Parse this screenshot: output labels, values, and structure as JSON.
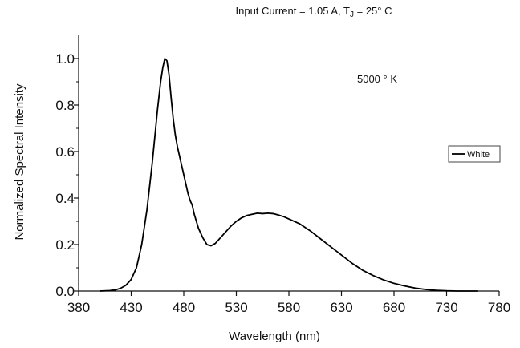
{
  "chart_data": {
    "type": "line",
    "title": "Input Current = 1.05 A, TJ = 25° C",
    "title_parts": {
      "prefix": "Input Current = 1.05 A, T",
      "subscript": "J",
      "suffix": " = 25° C"
    },
    "annotation": "5000 ° K",
    "xlabel": "Wavelength (nm)",
    "ylabel": "Normalized Spectral Intensity",
    "xlim": [
      380,
      780
    ],
    "ylim": [
      0,
      1.1
    ],
    "xticks": [
      "380",
      "430",
      "480",
      "530",
      "580",
      "630",
      "680",
      "730",
      "780"
    ],
    "yticks": [
      "0.0",
      "0.2",
      "0.4",
      "0.6",
      "0.8",
      "1.0"
    ],
    "legend": "right",
    "grid": false,
    "series": [
      {
        "name": "White",
        "color": "#000000",
        "x": [
          400,
          410,
          415,
          420,
          425,
          430,
          435,
          440,
          445,
          450,
          455,
          458,
          460,
          462,
          464,
          466,
          468,
          470,
          472,
          474,
          476,
          478,
          480,
          482,
          484,
          486,
          488,
          490,
          494,
          498,
          502,
          506,
          510,
          515,
          520,
          525,
          530,
          535,
          540,
          545,
          550,
          555,
          560,
          565,
          570,
          575,
          580,
          590,
          600,
          610,
          620,
          630,
          640,
          650,
          660,
          670,
          680,
          690,
          700,
          710,
          720,
          730,
          740,
          750,
          760
        ],
        "y": [
          0.0,
          0.002,
          0.005,
          0.012,
          0.025,
          0.05,
          0.1,
          0.2,
          0.35,
          0.55,
          0.78,
          0.9,
          0.96,
          1.0,
          0.99,
          0.93,
          0.83,
          0.74,
          0.67,
          0.62,
          0.58,
          0.54,
          0.5,
          0.46,
          0.42,
          0.39,
          0.37,
          0.33,
          0.27,
          0.23,
          0.2,
          0.195,
          0.205,
          0.23,
          0.255,
          0.28,
          0.3,
          0.315,
          0.325,
          0.33,
          0.335,
          0.333,
          0.335,
          0.333,
          0.327,
          0.32,
          0.31,
          0.29,
          0.26,
          0.225,
          0.19,
          0.155,
          0.12,
          0.09,
          0.067,
          0.048,
          0.033,
          0.022,
          0.013,
          0.007,
          0.003,
          0.001,
          0.0,
          0.0,
          0.0
        ]
      }
    ]
  }
}
